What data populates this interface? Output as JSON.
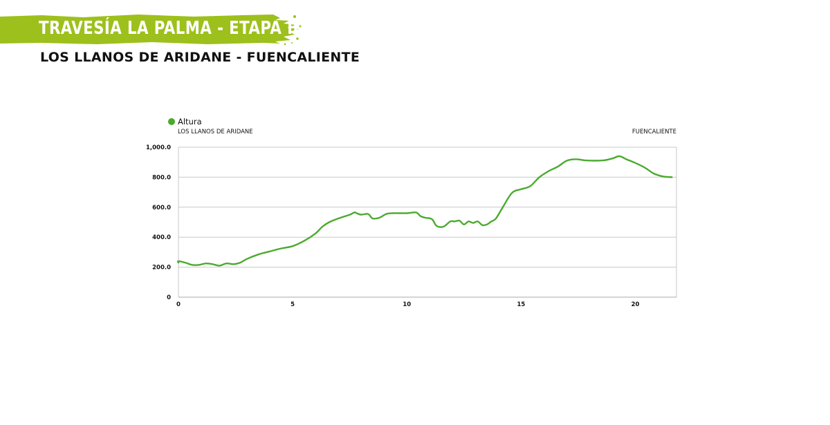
{
  "header": {
    "title": "TRAVESÍA LA PALMA - ETAPA II",
    "subtitle": "LOS LLANOS DE ARIDANE - FUENCALIENTE",
    "banner_color": "#9dc01c"
  },
  "chart_data": {
    "type": "area",
    "legend": {
      "label": "Altura",
      "color": "#4aaa2e",
      "placement": "top-left"
    },
    "start_label": "LOS LLANOS DE ARIDANE",
    "end_label": "FUENCALIENTE",
    "xlim": [
      0,
      21.8
    ],
    "ylim": [
      0,
      1000
    ],
    "x_ticks": [
      0,
      5,
      10,
      15,
      20
    ],
    "x_tick_labels": [
      "0",
      "5",
      "10",
      "15",
      "20"
    ],
    "y_ticks": [
      0,
      200,
      400,
      600,
      800,
      1000
    ],
    "y_tick_labels": [
      "0",
      "200.0",
      "400.0",
      "600.0",
      "800.0",
      "1,000.0"
    ],
    "grid": true,
    "series": [
      {
        "name": "Altura",
        "color": "#4aaa2e",
        "x": [
          -0.2,
          0,
          0.3,
          0.6,
          0.9,
          1.2,
          1.5,
          1.8,
          2.1,
          2.4,
          2.7,
          3.0,
          3.5,
          4.0,
          4.5,
          5.0,
          5.5,
          6.0,
          6.3,
          6.6,
          7.0,
          7.5,
          7.7,
          7.8,
          8.0,
          8.3,
          8.5,
          8.8,
          9.1,
          9.4,
          10.0,
          10.4,
          10.6,
          10.8,
          11.1,
          11.3,
          11.6,
          11.9,
          12.1,
          12.3,
          12.5,
          12.7,
          12.9,
          13.1,
          13.3,
          13.5,
          13.7,
          13.9,
          14.2,
          14.6,
          15.0,
          15.4,
          15.8,
          16.2,
          16.6,
          17.0,
          17.4,
          17.8,
          18.2,
          18.6,
          19.0,
          19.3,
          19.6,
          20.0,
          20.4,
          20.8,
          21.2,
          21.6
        ],
        "y": [
          230,
          240,
          230,
          215,
          215,
          225,
          220,
          210,
          225,
          220,
          230,
          255,
          285,
          305,
          325,
          340,
          375,
          425,
          470,
          500,
          525,
          550,
          565,
          560,
          550,
          555,
          525,
          530,
          555,
          560,
          560,
          565,
          540,
          530,
          520,
          475,
          470,
          505,
          505,
          510,
          485,
          505,
          495,
          505,
          480,
          485,
          505,
          525,
          600,
          695,
          720,
          740,
          800,
          840,
          870,
          910,
          920,
          912,
          910,
          912,
          925,
          940,
          920,
          895,
          865,
          825,
          805,
          800
        ]
      }
    ]
  }
}
